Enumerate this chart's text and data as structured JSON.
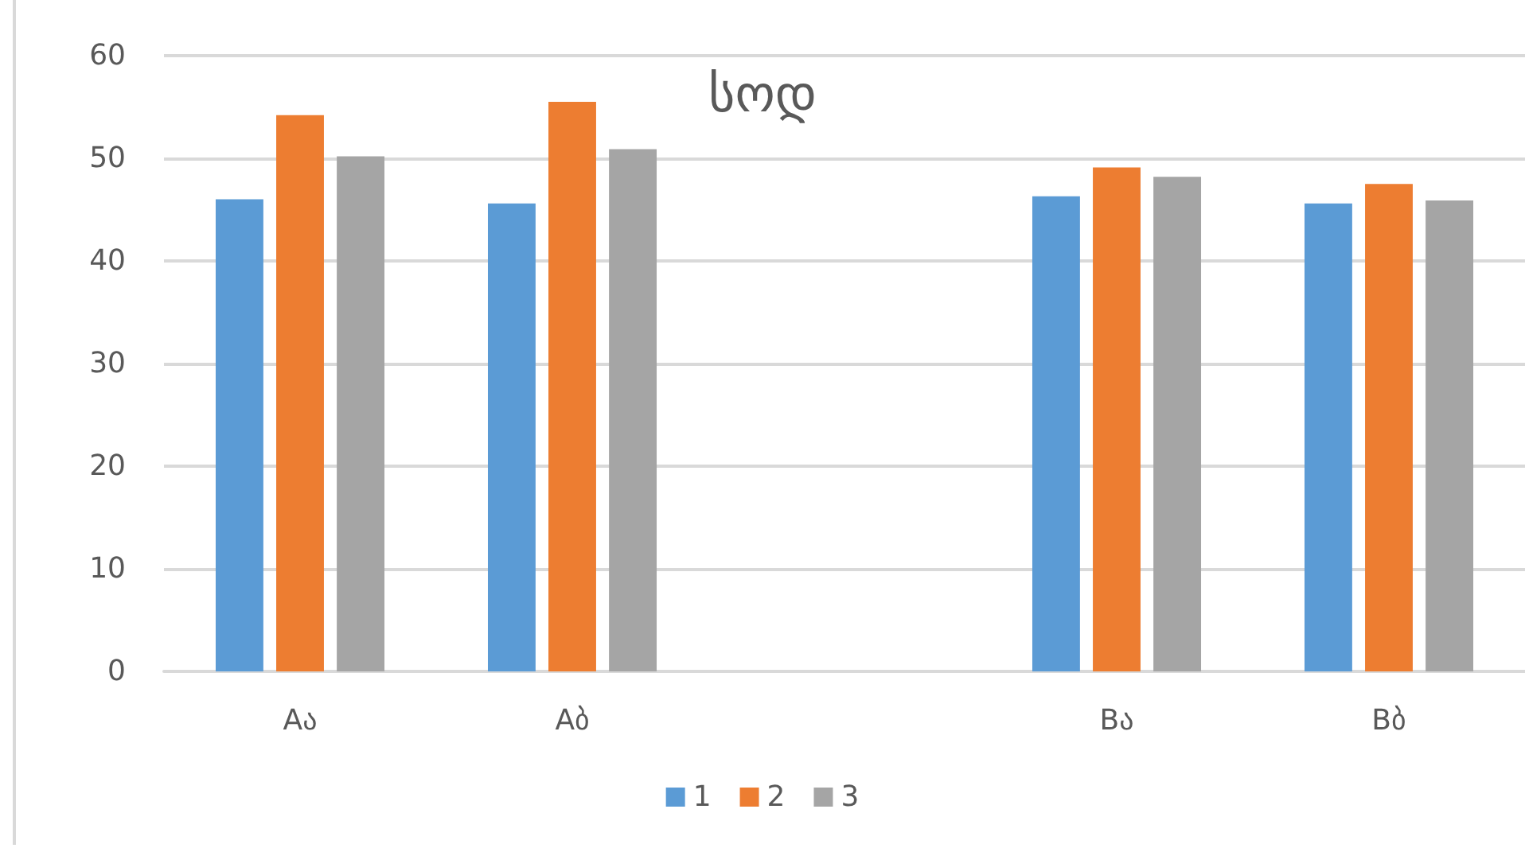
{
  "chart_data": {
    "type": "bar",
    "title": "სოდ",
    "categories": [
      "Aა",
      "Aბ",
      null,
      "Bა",
      "Bბ"
    ],
    "series": [
      {
        "name": "1",
        "color": "#5b9bd5",
        "values": [
          46.0,
          45.6,
          null,
          46.3,
          45.6
        ]
      },
      {
        "name": "2",
        "color": "#ed7d31",
        "values": [
          54.2,
          55.5,
          null,
          49.1,
          47.5
        ]
      },
      {
        "name": "3",
        "color": "#a5a5a5",
        "values": [
          50.2,
          50.9,
          null,
          48.2,
          45.9
        ]
      }
    ],
    "ylim": [
      0,
      60
    ],
    "yticks": [
      0,
      10,
      20,
      30,
      40,
      50,
      60
    ],
    "grid": "y",
    "legend": "bottom"
  }
}
